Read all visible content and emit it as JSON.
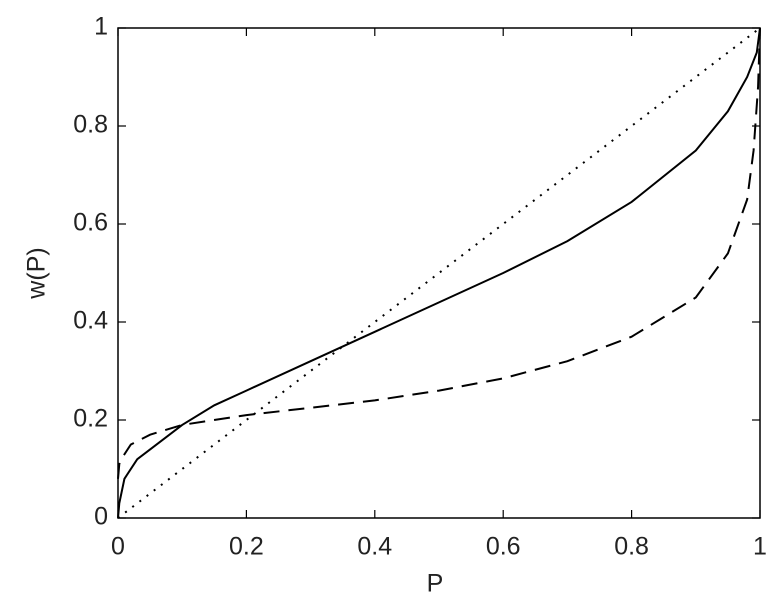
{
  "chart_data": {
    "type": "line",
    "xlabel": "P",
    "ylabel": "w(P)",
    "xlim": [
      0,
      1
    ],
    "ylim": [
      0,
      1
    ],
    "xticks": [
      0,
      0.2,
      0.4,
      0.6,
      0.8,
      1
    ],
    "yticks": [
      0,
      0.2,
      0.4,
      0.6,
      0.8,
      1
    ],
    "grid": false,
    "series": [
      {
        "color": "#000000",
        "style": "solid",
        "x": [
          0,
          0.002,
          0.01,
          0.03,
          0.05,
          0.1,
          0.15,
          0.2,
          0.3,
          0.4,
          0.5,
          0.6,
          0.7,
          0.8,
          0.9,
          0.95,
          0.98,
          0.995,
          1
        ],
        "values": [
          0,
          0.03,
          0.08,
          0.12,
          0.14,
          0.19,
          0.23,
          0.26,
          0.32,
          0.38,
          0.44,
          0.5,
          0.565,
          0.645,
          0.75,
          0.83,
          0.9,
          0.95,
          1
        ]
      },
      {
        "color": "#000000",
        "style": "dashed",
        "x": [
          0,
          0.002,
          0.005,
          0.02,
          0.05,
          0.1,
          0.2,
          0.3,
          0.4,
          0.5,
          0.6,
          0.7,
          0.8,
          0.9,
          0.95,
          0.98,
          0.99,
          0.997,
          1
        ],
        "values": [
          0.08,
          0.11,
          0.12,
          0.15,
          0.17,
          0.19,
          0.21,
          0.225,
          0.24,
          0.26,
          0.285,
          0.32,
          0.37,
          0.45,
          0.54,
          0.65,
          0.75,
          0.88,
          1
        ]
      },
      {
        "color": "#000000",
        "style": "dotted",
        "x": [
          0,
          1
        ],
        "values": [
          0,
          1
        ]
      }
    ]
  }
}
